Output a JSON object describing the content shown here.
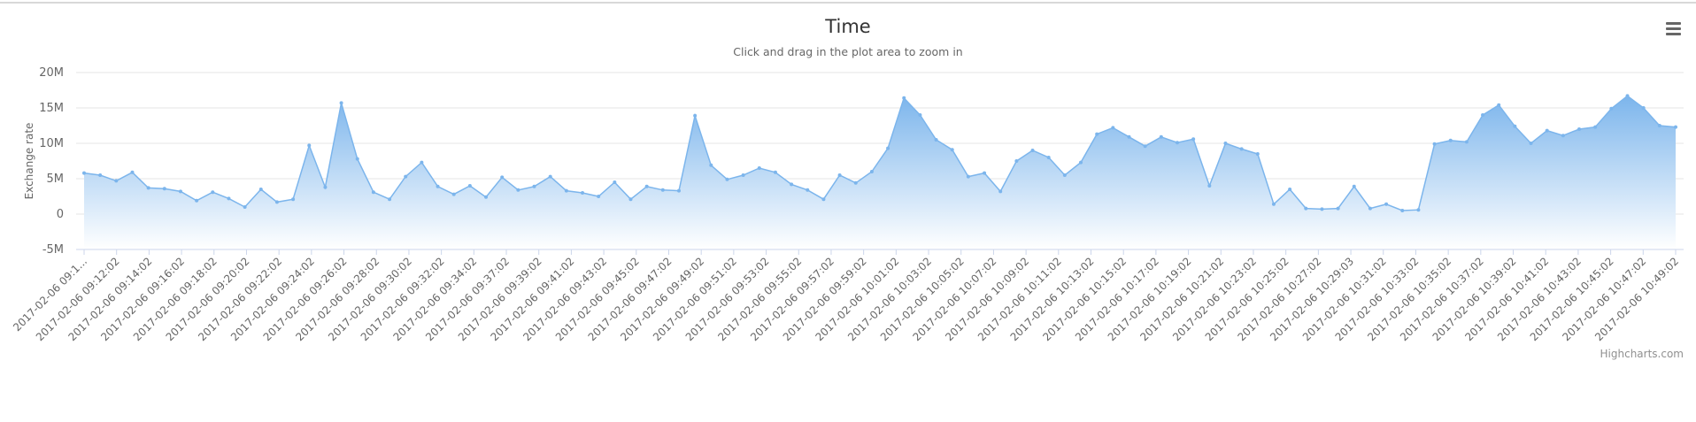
{
  "credits": "Highcharts.com",
  "colors": {
    "line": "#7cb5ec",
    "area_top": "#7cb5ec",
    "area_bottom": "#ffffff",
    "grid": "#e6e6e6",
    "menu": "#666666"
  },
  "menu_icon": "hamburger-menu-icon",
  "chart_data": {
    "type": "area",
    "title": "Time",
    "subtitle": "Click and drag in the plot area to zoom in",
    "ylabel": "Exchange rate",
    "xlabel": "",
    "ylim": [
      -5000000,
      20000000
    ],
    "yticks": [
      "20M",
      "15M",
      "10M",
      "5M",
      "0",
      "-5M"
    ],
    "ytick_values": [
      20000000,
      15000000,
      10000000,
      5000000,
      0,
      -5000000
    ],
    "grid": true,
    "legend": "none",
    "xtick_labels": [
      "2017-02-06 09:1...",
      "2017-02-06 09:12:02",
      "2017-02-06 09:14:02",
      "2017-02-06 09:16:02",
      "2017-02-06 09:18:02",
      "2017-02-06 09:20:02",
      "2017-02-06 09:22:02",
      "2017-02-06 09:24:02",
      "2017-02-06 09:26:02",
      "2017-02-06 09:28:02",
      "2017-02-06 09:30:02",
      "2017-02-06 09:32:02",
      "2017-02-06 09:34:02",
      "2017-02-06 09:37:02",
      "2017-02-06 09:39:02",
      "2017-02-06 09:41:02",
      "2017-02-06 09:43:02",
      "2017-02-06 09:45:02",
      "2017-02-06 09:47:02",
      "2017-02-06 09:49:02",
      "2017-02-06 09:51:02",
      "2017-02-06 09:53:02",
      "2017-02-06 09:55:02",
      "2017-02-06 09:57:02",
      "2017-02-06 09:59:02",
      "2017-02-06 10:01:02",
      "2017-02-06 10:03:02",
      "2017-02-06 10:05:02",
      "2017-02-06 10:07:02",
      "2017-02-06 10:09:02",
      "2017-02-06 10:11:02",
      "2017-02-06 10:13:02",
      "2017-02-06 10:15:02",
      "2017-02-06 10:17:02",
      "2017-02-06 10:19:02",
      "2017-02-06 10:21:02",
      "2017-02-06 10:23:02",
      "2017-02-06 10:25:02",
      "2017-02-06 10:27:02",
      "2017-02-06 10:29:03",
      "2017-02-06 10:31:02",
      "2017-02-06 10:33:02",
      "2017-02-06 10:35:02",
      "2017-02-06 10:37:02",
      "2017-02-06 10:39:02",
      "2017-02-06 10:41:02",
      "2017-02-06 10:43:02",
      "2017-02-06 10:45:02",
      "2017-02-06 10:47:02",
      "2017-02-06 10:49:02"
    ],
    "series": [
      {
        "values": [
          5800000,
          5500000,
          4700000,
          5900000,
          3700000,
          3600000,
          3200000,
          1900000,
          3100000,
          2200000,
          1000000,
          3500000,
          1700000,
          2100000,
          9700000,
          3800000,
          15700000,
          7800000,
          3100000,
          2100000,
          5300000,
          7300000,
          3900000,
          2800000,
          4000000,
          2400000,
          5200000,
          3400000,
          3900000,
          5300000,
          3300000,
          3000000,
          2500000,
          4500000,
          2100000,
          3900000,
          3400000,
          3300000,
          13900000,
          6900000,
          4900000,
          5500000,
          6500000,
          5900000,
          4200000,
          3400000,
          2100000,
          5500000,
          4400000,
          6000000,
          9300000,
          16400000,
          14000000,
          10500000,
          9100000,
          5300000,
          5800000,
          3200000,
          7500000,
          9000000,
          8000000,
          5500000,
          7300000,
          11300000,
          12200000,
          10900000,
          9600000,
          10900000,
          10100000,
          10600000,
          4000000,
          10000000,
          9200000,
          8500000,
          1400000,
          3500000,
          800000,
          700000,
          800000,
          3900000,
          800000,
          1400000,
          500000,
          600000,
          9900000,
          10400000,
          10200000,
          14000000,
          15400000,
          12400000,
          10000000,
          11800000,
          11100000,
          12000000,
          12300000,
          14900000,
          16700000,
          15000000,
          12500000,
          12300000
        ]
      }
    ]
  }
}
